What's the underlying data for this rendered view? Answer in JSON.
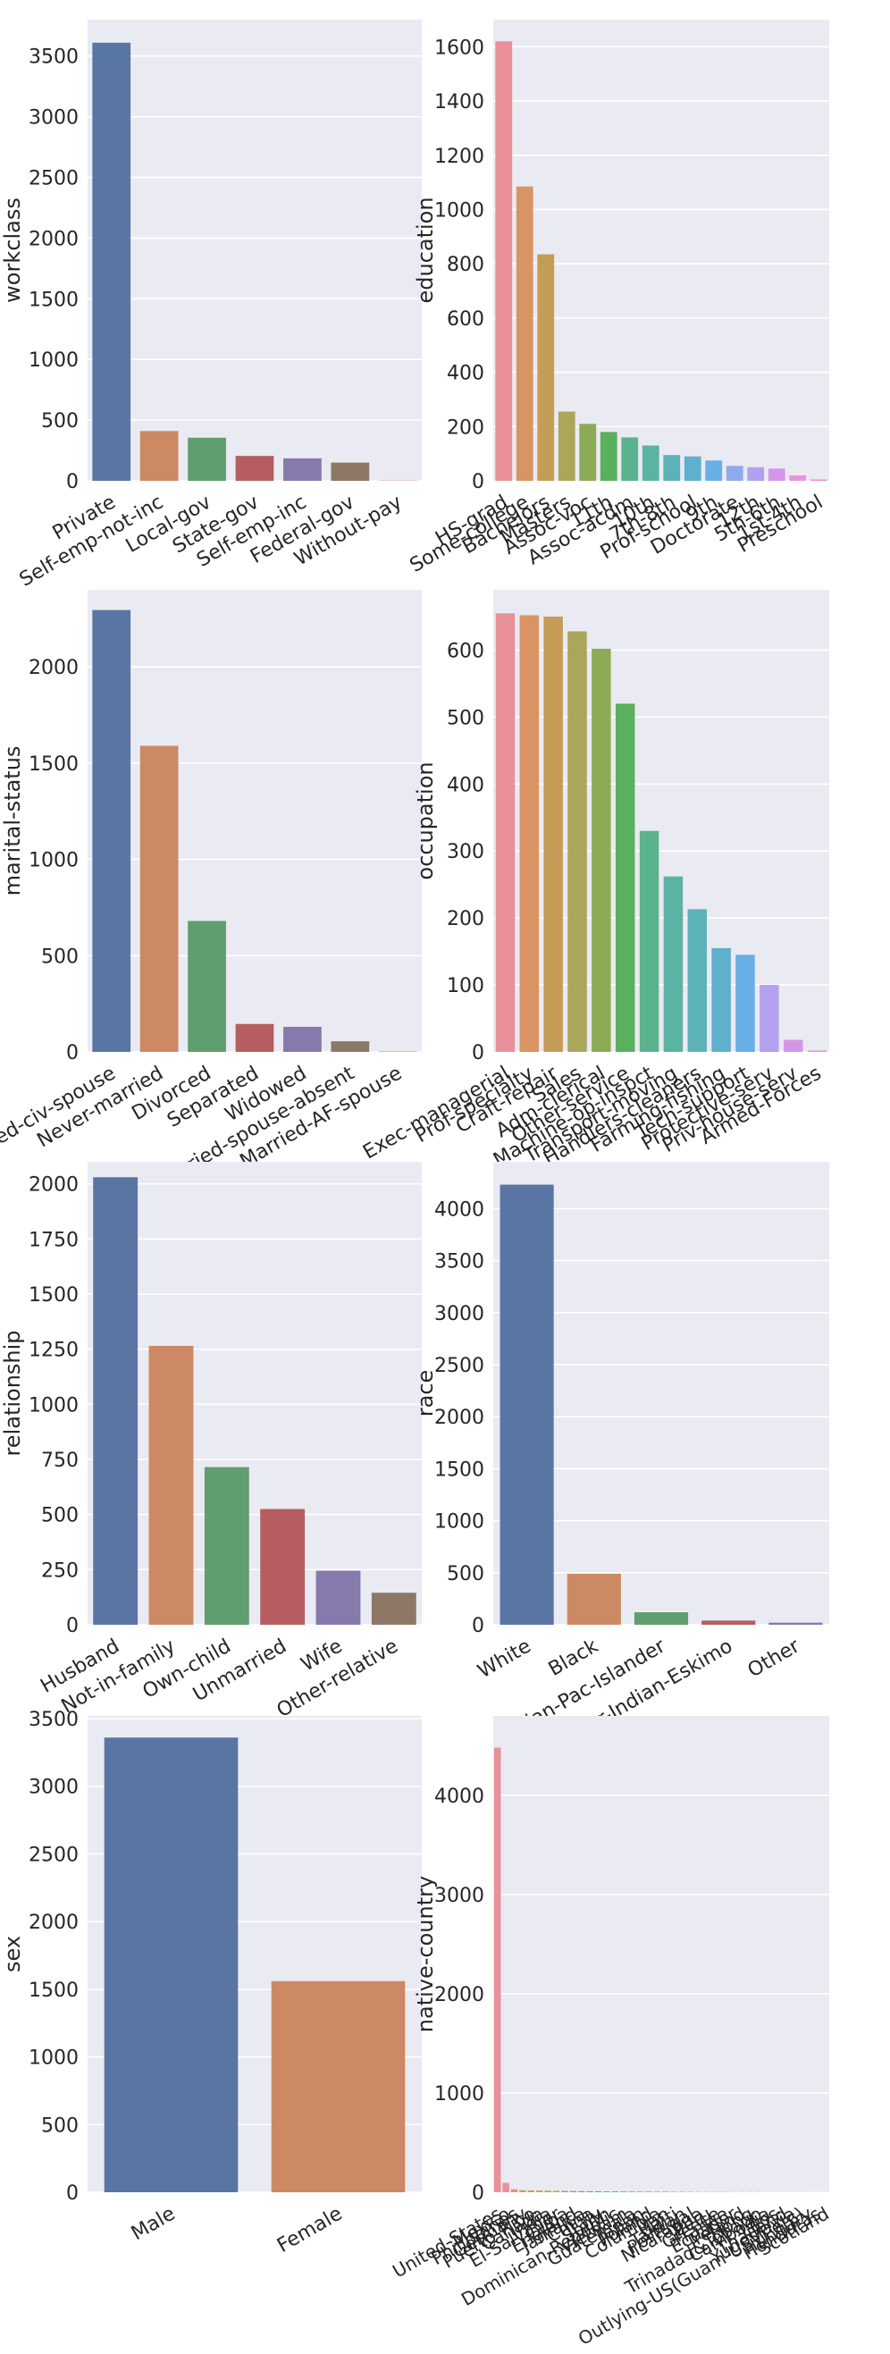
{
  "chart_data": [
    {
      "type": "bar",
      "ylabel": "workclass",
      "ylim": [
        0,
        3800
      ],
      "yticks": [
        0,
        500,
        1000,
        1500,
        2000,
        2500,
        3000,
        3500
      ],
      "categories": [
        "Private",
        "Self-emp-not-inc",
        "Local-gov",
        "State-gov",
        "Self-emp-inc",
        "Federal-gov",
        "Without-pay"
      ],
      "values": [
        3610,
        410,
        355,
        205,
        185,
        150,
        3
      ],
      "colors": [
        "#5975a4",
        "#cc8963",
        "#5f9e6e",
        "#b55d60",
        "#857aab",
        "#8d7866",
        "#d095bf"
      ]
    },
    {
      "type": "bar",
      "ylabel": "education",
      "ylim": [
        0,
        1700
      ],
      "yticks": [
        0,
        200,
        400,
        600,
        800,
        1000,
        1200,
        1400,
        1600
      ],
      "categories": [
        "HS-grad",
        "Some-college",
        "Bachelors",
        "Masters",
        "Assoc-voc",
        "11th",
        "Assoc-acdm",
        "10th",
        "7th-8th",
        "Prof-school",
        "9th",
        "Doctorate",
        "12th",
        "5th-6th",
        "1st-4th",
        "Preschool"
      ],
      "values": [
        1620,
        1085,
        835,
        255,
        210,
        180,
        160,
        130,
        95,
        90,
        75,
        55,
        50,
        45,
        20,
        5
      ],
      "colors": [
        "#e8919a",
        "#d99463",
        "#c49c57",
        "#aaa65a",
        "#8dab57",
        "#5ab05d",
        "#5bb38e",
        "#5bb3a4",
        "#5cb2b7",
        "#5eb0cc",
        "#69aee7",
        "#8eaaee",
        "#b3a1ee",
        "#d596ea",
        "#e893de",
        "#ea96c7"
      ]
    },
    {
      "type": "bar",
      "ylabel": "marital-status",
      "ylim": [
        0,
        2400
      ],
      "yticks": [
        0,
        500,
        1000,
        1500,
        2000
      ],
      "categories": [
        "Married-civ-spouse",
        "Never-married",
        "Divorced",
        "Separated",
        "Widowed",
        "Married-spouse-absent",
        "Married-AF-spouse"
      ],
      "values": [
        2295,
        1590,
        680,
        145,
        130,
        55,
        3
      ],
      "colors": [
        "#5975a4",
        "#cc8963",
        "#5f9e6e",
        "#b55d60",
        "#857aab",
        "#8d7866",
        "#d095bf"
      ]
    },
    {
      "type": "bar",
      "ylabel": "occupation",
      "ylim": [
        0,
        690
      ],
      "yticks": [
        0,
        100,
        200,
        300,
        400,
        500,
        600
      ],
      "categories": [
        "Exec-managerial",
        "Prof-specialty",
        "Craft-repair",
        "Sales",
        "Adm-clerical",
        "Other-service",
        "Machine-op-inspct",
        "Transport-moving",
        "Handlers-cleaners",
        "Farming-fishing",
        "Tech-support",
        "Protective-serv",
        "Priv-house-serv",
        "Armed-Forces"
      ],
      "values": [
        655,
        652,
        650,
        628,
        602,
        520,
        330,
        262,
        213,
        155,
        145,
        100,
        18,
        2
      ],
      "colors": [
        "#e8919a",
        "#d99463",
        "#c49c57",
        "#aaa65a",
        "#8dab57",
        "#5ab05d",
        "#5bb38e",
        "#5bb3a4",
        "#5cb2b7",
        "#5eb0cc",
        "#69aee7",
        "#b3a1ee",
        "#d596ea",
        "#ea96c7"
      ]
    },
    {
      "type": "bar",
      "ylabel": "relationship",
      "ylim": [
        0,
        2100
      ],
      "yticks": [
        0,
        250,
        500,
        750,
        1000,
        1250,
        1500,
        1750,
        2000
      ],
      "categories": [
        "Husband",
        "Not-in-family",
        "Own-child",
        "Unmarried",
        "Wife",
        "Other-relative"
      ],
      "values": [
        2030,
        1265,
        715,
        525,
        245,
        145
      ],
      "colors": [
        "#5975a4",
        "#cc8963",
        "#5f9e6e",
        "#b55d60",
        "#857aab",
        "#8d7866"
      ]
    },
    {
      "type": "bar",
      "ylabel": "race",
      "ylim": [
        0,
        4450
      ],
      "yticks": [
        0,
        500,
        1000,
        1500,
        2000,
        2500,
        3000,
        3500,
        4000
      ],
      "categories": [
        "White",
        "Black",
        "Asian-Pac-Islander",
        "Amer-Indian-Eskimo",
        "Other"
      ],
      "values": [
        4230,
        490,
        120,
        40,
        20
      ],
      "colors": [
        "#5975a4",
        "#cc8963",
        "#5f9e6e",
        "#b55d60",
        "#857aab"
      ]
    },
    {
      "type": "bar",
      "ylabel": "sex",
      "ylim": [
        0,
        3520
      ],
      "yticks": [
        0,
        500,
        1000,
        1500,
        2000,
        2500,
        3000,
        3500
      ],
      "categories": [
        "Male",
        "Female"
      ],
      "values": [
        3360,
        1560
      ],
      "colors": [
        "#5975a4",
        "#cc8963"
      ]
    },
    {
      "type": "bar",
      "ylabel": "native-country",
      "ylim": [
        0,
        4800
      ],
      "yticks": [
        0,
        1000,
        2000,
        3000,
        4000
      ],
      "categories": [
        "United-States",
        "Mexico",
        "Philippines",
        "Germany",
        "Puerto-Rico",
        "Canada",
        "India",
        "El-Salvador",
        "Cuba",
        "England",
        "Jamaica",
        "China",
        "Italy",
        "South",
        "Dominican-Republic",
        "Vietnam",
        "Guatemala",
        "Japan",
        "Poland",
        "Columbia",
        "Iran",
        "Haiti",
        "Taiwan",
        "Portugal",
        "Nicaragua",
        "Peru",
        "Greece",
        "France",
        "Ecuador",
        "Ireland",
        "Hong",
        "Trinadad&Tobago",
        "Cambodia",
        "Laos",
        "Thailand",
        "Yugoslavia",
        "Outlying-US(Guam-USVI-etc)",
        "Hungary",
        "Honduras",
        "Scotland"
      ],
      "values": [
        4480,
        95,
        30,
        20,
        18,
        16,
        15,
        14,
        13,
        12,
        11,
        10,
        10,
        9,
        9,
        8,
        8,
        7,
        7,
        6,
        6,
        5,
        5,
        5,
        4,
        4,
        4,
        4,
        3,
        3,
        3,
        3,
        2,
        2,
        2,
        2,
        2,
        1,
        1,
        1
      ],
      "colors": [
        "#e8919a",
        "#e6939a",
        "#dd9576",
        "#d59859",
        "#c99c55",
        "#bda058",
        "#b1a45a",
        "#a4a85b",
        "#97ab5c",
        "#88ae5d",
        "#72b15e",
        "#5bb262",
        "#5bb27a",
        "#5bb38a",
        "#5bb396",
        "#5bb3a2",
        "#5bb3ad",
        "#5cb3b8",
        "#5db2c3",
        "#5fb1ce",
        "#62afd9",
        "#6badea",
        "#7fabee",
        "#92a9ee",
        "#a4a4ee",
        "#b5a0ee",
        "#c59beb",
        "#d396e8",
        "#de93e3",
        "#e693dc",
        "#e994d4",
        "#ea95cc",
        "#ea96c3",
        "#ea97ba",
        "#ea98b1",
        "#e999a9",
        "#e89aa2",
        "#e89b9e",
        "#e89c9c",
        "#e89d9a"
      ]
    }
  ]
}
